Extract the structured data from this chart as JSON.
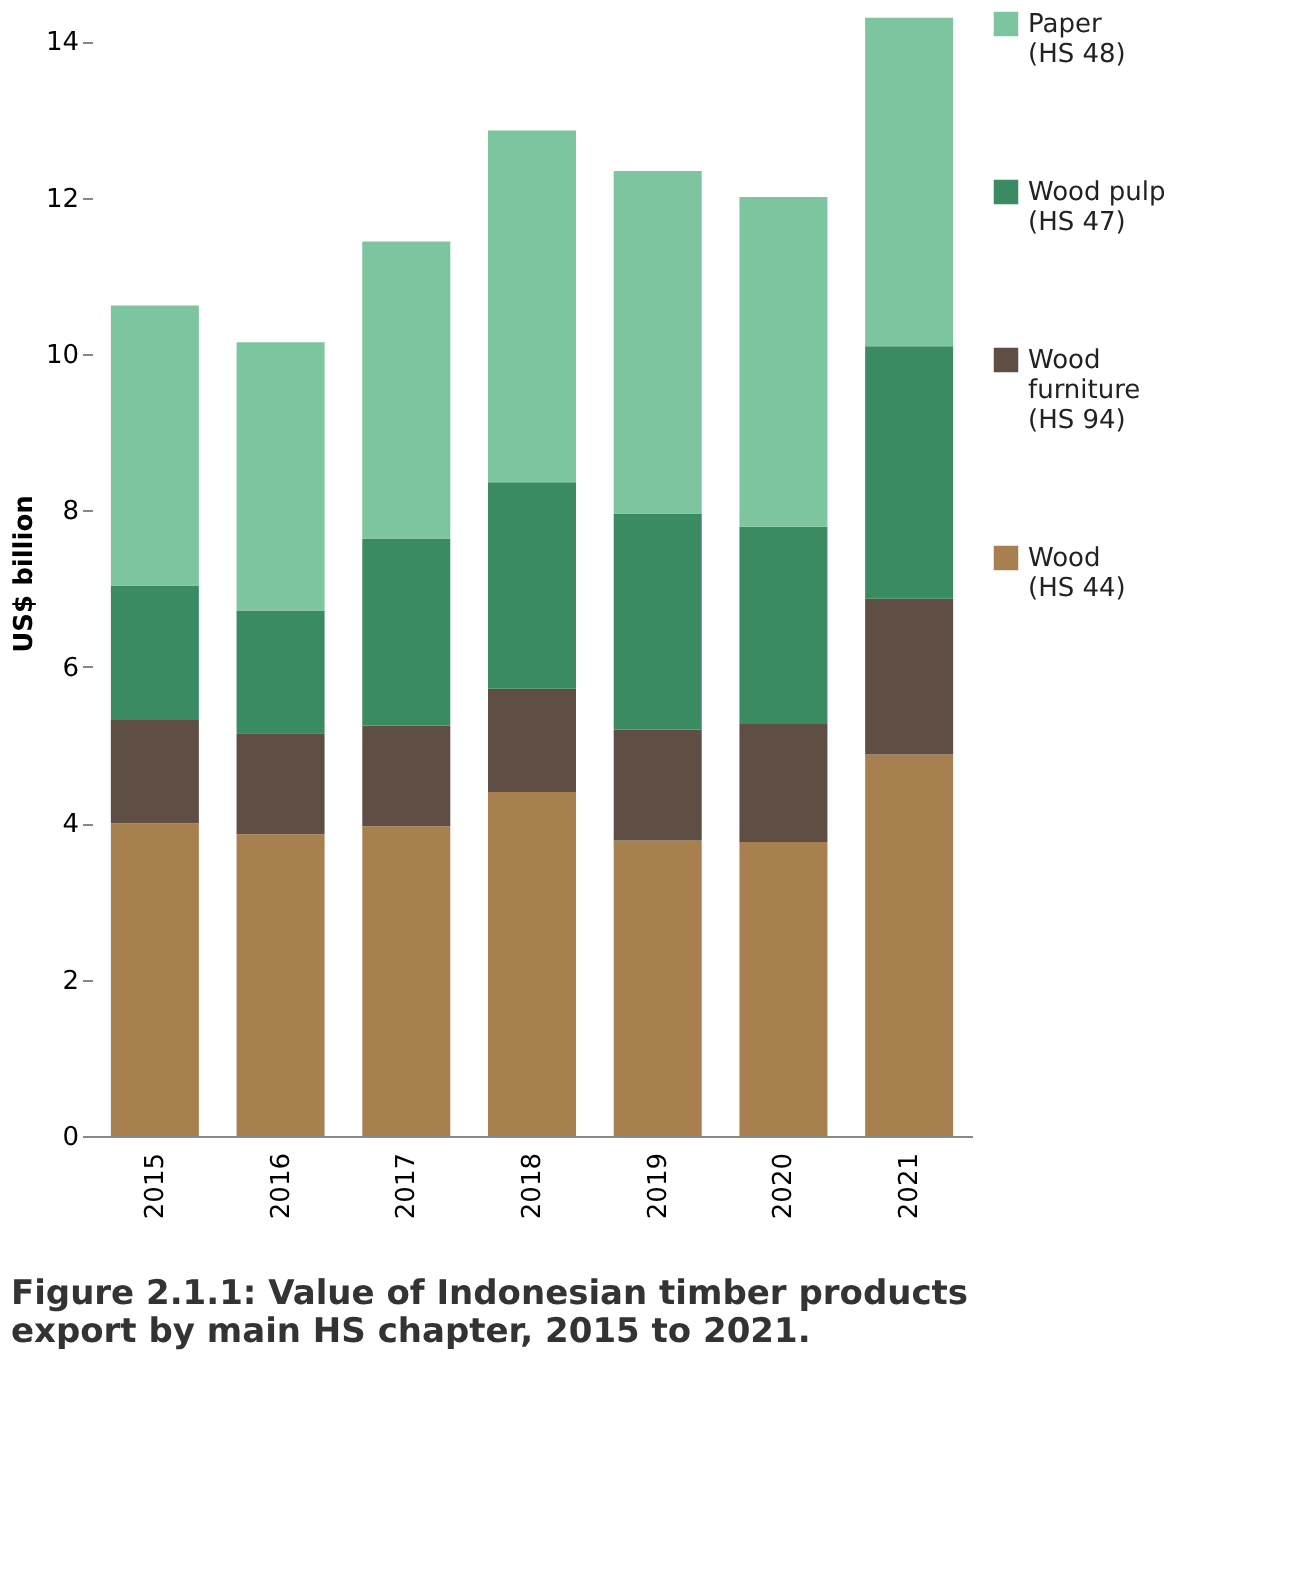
{
  "chart_data": {
    "type": "bar",
    "stacked": true,
    "title": "Figure 2.1.1: Value of Indonesian timber products export by main HS chapter, 2015 to 2021.",
    "ylabel": "US$ billion",
    "categories": [
      "2015",
      "2016",
      "2017",
      "2018",
      "2019",
      "2020",
      "2021"
    ],
    "series": [
      {
        "name": "Wood\n(HS 44)",
        "color": "#a8804f",
        "values": [
          4.0,
          3.86,
          3.96,
          4.4,
          3.78,
          3.76,
          4.88
        ]
      },
      {
        "name": "Wood\nfurniture\n(HS 94)",
        "color": "#5e4e44",
        "values": [
          1.32,
          1.29,
          1.29,
          1.32,
          1.42,
          1.51,
          1.99
        ]
      },
      {
        "name": "Wood pulp\n(HS 47)",
        "color": "#3a8a62",
        "values": [
          1.72,
          1.57,
          2.39,
          2.64,
          2.76,
          2.52,
          3.23
        ]
      },
      {
        "name": "Paper\n(HS 48)",
        "color": "#7cc59e",
        "values": [
          3.58,
          3.43,
          3.8,
          4.5,
          4.38,
          4.22,
          4.2
        ]
      }
    ],
    "ylim": [
      0,
      14.4
    ],
    "yticks": [
      0,
      2,
      4,
      6,
      8,
      10,
      12,
      14
    ],
    "grid": false,
    "legend": "right"
  }
}
